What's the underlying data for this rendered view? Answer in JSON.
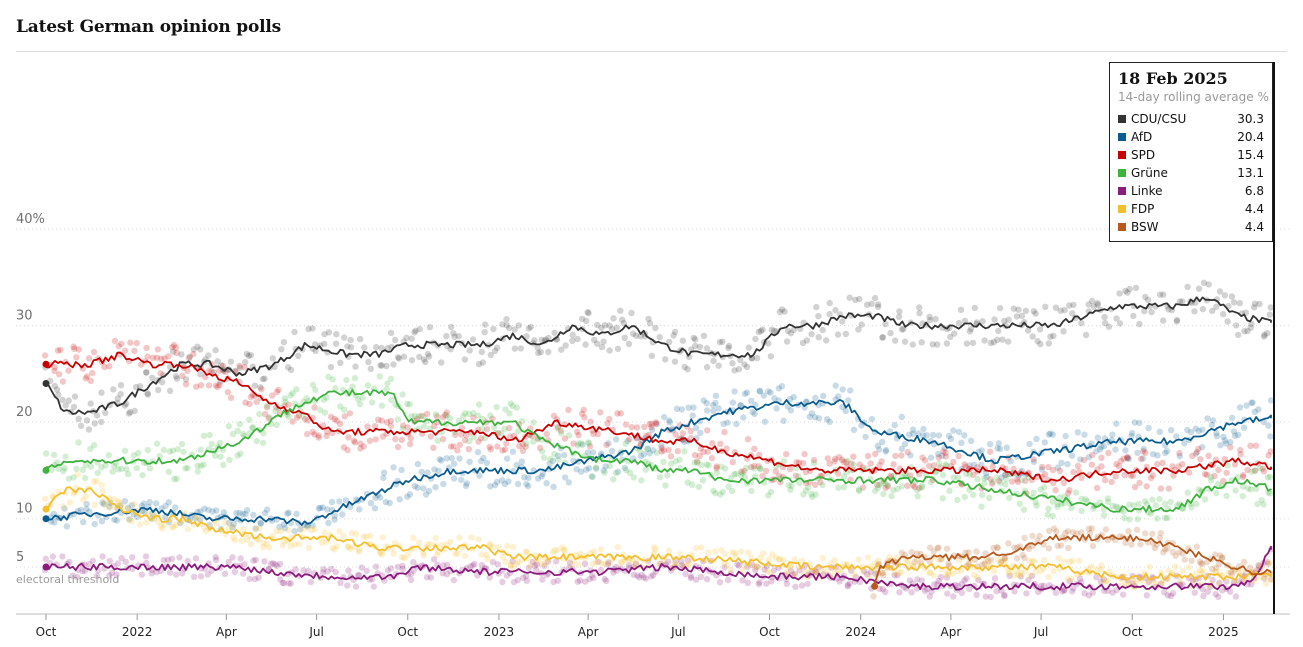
{
  "title": "Latest German opinion polls",
  "tooltip": {
    "date": "18 Feb 2025",
    "subtitle": "14-day rolling average %",
    "rows": [
      {
        "name": "CDU/CSU",
        "value": "30.3",
        "color": "#333333"
      },
      {
        "name": "AfD",
        "value": "20.4",
        "color": "#0a5b8f"
      },
      {
        "name": "SPD",
        "value": "15.4",
        "color": "#c70000"
      },
      {
        "name": "Grüne",
        "value": "13.1",
        "color": "#3db33d"
      },
      {
        "name": "Linke",
        "value": "6.8",
        "color": "#8b1a7d"
      },
      {
        "name": "FDP",
        "value": "4.4",
        "color": "#f5be2c"
      },
      {
        "name": "BSW",
        "value": "4.4",
        "color": "#b85a1d"
      }
    ]
  },
  "chart_data": {
    "type": "line",
    "title": "Latest German opinion polls",
    "y_ticks": [
      "40%",
      "30",
      "20",
      "10",
      "5"
    ],
    "y_tick_values": [
      40,
      30,
      20,
      10,
      5
    ],
    "threshold": {
      "value": 5,
      "label": "electoral threshold"
    },
    "ylim": [
      2,
      44
    ],
    "x_range": [
      "2021-10-01",
      "2025-02-20"
    ],
    "x_ticks": [
      {
        "label": "Oct",
        "date": "2021-10-01"
      },
      {
        "label": "2022",
        "date": "2022-01-01"
      },
      {
        "label": "Apr",
        "date": "2022-04-01"
      },
      {
        "label": "Jul",
        "date": "2022-07-01"
      },
      {
        "label": "Oct",
        "date": "2022-10-01"
      },
      {
        "label": "2023",
        "date": "2023-01-01"
      },
      {
        "label": "Apr",
        "date": "2023-04-01"
      },
      {
        "label": "Jul",
        "date": "2023-07-01"
      },
      {
        "label": "Oct",
        "date": "2023-10-01"
      },
      {
        "label": "2024",
        "date": "2024-01-01"
      },
      {
        "label": "Apr",
        "date": "2024-04-01"
      },
      {
        "label": "Jul",
        "date": "2024-07-01"
      },
      {
        "label": "Oct",
        "date": "2024-10-01"
      },
      {
        "label": "2025",
        "date": "2025-01-01"
      }
    ],
    "series": [
      {
        "name": "CDU/CSU",
        "color": "#333333",
        "points": [
          [
            "2021-10-01",
            24
          ],
          [
            "2021-10-20",
            21
          ],
          [
            "2021-11-15",
            21
          ],
          [
            "2021-12-15",
            22
          ],
          [
            "2022-01-15",
            24
          ],
          [
            "2022-02-15",
            26
          ],
          [
            "2022-03-15",
            26
          ],
          [
            "2022-04-15",
            25
          ],
          [
            "2022-05-20",
            26
          ],
          [
            "2022-06-20",
            28
          ],
          [
            "2022-08-01",
            27
          ],
          [
            "2022-09-01",
            27
          ],
          [
            "2022-10-01",
            28
          ],
          [
            "2022-11-15",
            28
          ],
          [
            "2022-12-15",
            28
          ],
          [
            "2023-01-15",
            29
          ],
          [
            "2023-02-15",
            28
          ],
          [
            "2023-03-15",
            30
          ],
          [
            "2023-04-15",
            29
          ],
          [
            "2023-05-15",
            30
          ],
          [
            "2023-06-15",
            28
          ],
          [
            "2023-07-15",
            27
          ],
          [
            "2023-08-15",
            27
          ],
          [
            "2023-09-15",
            27
          ],
          [
            "2023-10-15",
            30
          ],
          [
            "2023-11-15",
            30
          ],
          [
            "2023-12-15",
            31
          ],
          [
            "2024-01-15",
            31
          ],
          [
            "2024-02-15",
            30
          ],
          [
            "2024-03-15",
            30
          ],
          [
            "2024-04-15",
            30
          ],
          [
            "2024-05-15",
            30
          ],
          [
            "2024-06-15",
            30
          ],
          [
            "2024-07-15",
            30
          ],
          [
            "2024-08-15",
            31
          ],
          [
            "2024-09-15",
            32
          ],
          [
            "2024-10-15",
            32
          ],
          [
            "2024-11-15",
            32
          ],
          [
            "2024-12-15",
            33
          ],
          [
            "2025-01-15",
            31
          ],
          [
            "2025-02-18",
            30.3
          ]
        ]
      },
      {
        "name": "AfD",
        "color": "#0a5b8f",
        "points": [
          [
            "2021-10-01",
            10
          ],
          [
            "2021-11-15",
            10.5
          ],
          [
            "2022-01-15",
            11
          ],
          [
            "2022-03-15",
            10
          ],
          [
            "2022-05-15",
            10
          ],
          [
            "2022-06-20",
            9.5
          ],
          [
            "2022-08-15",
            12
          ],
          [
            "2022-10-01",
            14
          ],
          [
            "2022-11-15",
            15
          ],
          [
            "2023-01-01",
            15
          ],
          [
            "2023-02-15",
            15
          ],
          [
            "2023-04-01",
            16
          ],
          [
            "2023-05-15",
            17
          ],
          [
            "2023-06-15",
            19
          ],
          [
            "2023-07-15",
            20
          ],
          [
            "2023-08-15",
            21
          ],
          [
            "2023-10-15",
            22
          ],
          [
            "2023-12-15",
            22
          ],
          [
            "2024-01-15",
            19
          ],
          [
            "2024-03-15",
            18
          ],
          [
            "2024-05-15",
            16
          ],
          [
            "2024-07-15",
            17
          ],
          [
            "2024-09-15",
            18
          ],
          [
            "2024-11-15",
            18
          ],
          [
            "2024-12-15",
            19
          ],
          [
            "2025-01-15",
            20
          ],
          [
            "2025-02-18",
            20.4
          ]
        ]
      },
      {
        "name": "SPD",
        "color": "#c70000",
        "points": [
          [
            "2021-10-01",
            26
          ],
          [
            "2021-11-15",
            26
          ],
          [
            "2021-12-15",
            27
          ],
          [
            "2022-01-15",
            26
          ],
          [
            "2022-02-15",
            26
          ],
          [
            "2022-03-15",
            25
          ],
          [
            "2022-04-15",
            24
          ],
          [
            "2022-05-15",
            22
          ],
          [
            "2022-06-15",
            21
          ],
          [
            "2022-07-15",
            19
          ],
          [
            "2022-09-01",
            19
          ],
          [
            "2022-10-15",
            19
          ],
          [
            "2022-12-15",
            19
          ],
          [
            "2023-01-15",
            18
          ],
          [
            "2023-03-01",
            20
          ],
          [
            "2023-05-01",
            19
          ],
          [
            "2023-06-15",
            18
          ],
          [
            "2023-07-15",
            18
          ],
          [
            "2023-08-15",
            17
          ],
          [
            "2023-10-01",
            16
          ],
          [
            "2023-11-15",
            15
          ],
          [
            "2024-01-15",
            15
          ],
          [
            "2024-03-15",
            15
          ],
          [
            "2024-05-15",
            15
          ],
          [
            "2024-07-15",
            14
          ],
          [
            "2024-09-15",
            15
          ],
          [
            "2024-11-15",
            15
          ],
          [
            "2025-01-15",
            16
          ],
          [
            "2025-02-18",
            15.4
          ]
        ]
      },
      {
        "name": "Grüne",
        "color": "#3db33d",
        "points": [
          [
            "2021-10-01",
            15
          ],
          [
            "2021-10-20",
            16
          ],
          [
            "2021-12-15",
            16
          ],
          [
            "2022-01-15",
            16
          ],
          [
            "2022-02-15",
            16
          ],
          [
            "2022-03-15",
            17
          ],
          [
            "2022-04-15",
            18
          ],
          [
            "2022-05-15",
            20
          ],
          [
            "2022-06-15",
            22
          ],
          [
            "2022-07-15",
            23
          ],
          [
            "2022-08-15",
            23
          ],
          [
            "2022-09-15",
            23
          ],
          [
            "2022-10-01",
            20
          ],
          [
            "2022-11-15",
            20
          ],
          [
            "2022-12-15",
            20
          ],
          [
            "2023-01-15",
            20
          ],
          [
            "2023-02-15",
            18
          ],
          [
            "2023-03-15",
            17
          ],
          [
            "2023-04-15",
            16
          ],
          [
            "2023-05-15",
            16
          ],
          [
            "2023-06-15",
            15
          ],
          [
            "2023-07-15",
            15
          ],
          [
            "2023-08-15",
            14
          ],
          [
            "2023-09-15",
            14
          ],
          [
            "2023-10-15",
            14
          ],
          [
            "2023-11-15",
            14
          ],
          [
            "2024-01-15",
            14
          ],
          [
            "2024-03-15",
            14
          ],
          [
            "2024-05-15",
            13
          ],
          [
            "2024-07-15",
            12
          ],
          [
            "2024-09-15",
            11
          ],
          [
            "2024-10-15",
            11
          ],
          [
            "2024-11-15",
            11
          ],
          [
            "2024-12-15",
            13
          ],
          [
            "2025-01-15",
            14
          ],
          [
            "2025-02-18",
            13.1
          ]
        ]
      },
      {
        "name": "Linke",
        "color": "#8b1a7d",
        "points": [
          [
            "2021-10-01",
            5
          ],
          [
            "2021-11-15",
            5
          ],
          [
            "2022-01-15",
            5
          ],
          [
            "2022-03-15",
            5
          ],
          [
            "2022-04-15",
            5
          ],
          [
            "2022-05-15",
            4.5
          ],
          [
            "2022-07-15",
            4
          ],
          [
            "2022-09-15",
            4
          ],
          [
            "2022-10-15",
            5
          ],
          [
            "2022-12-15",
            4.5
          ],
          [
            "2023-02-15",
            4.5
          ],
          [
            "2023-04-15",
            4.5
          ],
          [
            "2023-06-15",
            5
          ],
          [
            "2023-08-15",
            4.5
          ],
          [
            "2023-10-01",
            4
          ],
          [
            "2023-12-15",
            4
          ],
          [
            "2024-02-15",
            3
          ],
          [
            "2024-04-15",
            3
          ],
          [
            "2024-06-15",
            3
          ],
          [
            "2024-08-15",
            3
          ],
          [
            "2024-10-15",
            3
          ],
          [
            "2024-12-15",
            3
          ],
          [
            "2025-01-15",
            3
          ],
          [
            "2025-02-01",
            4
          ],
          [
            "2025-02-18",
            6.8
          ]
        ]
      },
      {
        "name": "FDP",
        "color": "#f5be2c",
        "points": [
          [
            "2021-10-01",
            11
          ],
          [
            "2021-10-20",
            13
          ],
          [
            "2021-11-15",
            13
          ],
          [
            "2021-12-15",
            11
          ],
          [
            "2022-01-15",
            10
          ],
          [
            "2022-02-15",
            10
          ],
          [
            "2022-03-15",
            9
          ],
          [
            "2022-05-15",
            8
          ],
          [
            "2022-07-15",
            8
          ],
          [
            "2022-09-01",
            7
          ],
          [
            "2022-10-15",
            7
          ],
          [
            "2022-12-15",
            7
          ],
          [
            "2023-01-15",
            6
          ],
          [
            "2023-03-15",
            6
          ],
          [
            "2023-05-15",
            6
          ],
          [
            "2023-07-15",
            6
          ],
          [
            "2023-09-15",
            5.5
          ],
          [
            "2023-11-15",
            5
          ],
          [
            "2024-01-15",
            5
          ],
          [
            "2024-03-15",
            5
          ],
          [
            "2024-05-15",
            5
          ],
          [
            "2024-07-15",
            5
          ],
          [
            "2024-09-15",
            4
          ],
          [
            "2024-11-15",
            4
          ],
          [
            "2025-01-15",
            4
          ],
          [
            "2025-02-18",
            4.4
          ]
        ]
      },
      {
        "name": "BSW",
        "color": "#b85a1d",
        "points": [
          [
            "2024-01-15",
            3
          ],
          [
            "2024-01-20",
            5
          ],
          [
            "2024-02-15",
            6
          ],
          [
            "2024-03-15",
            6
          ],
          [
            "2024-05-01",
            6
          ],
          [
            "2024-06-15",
            7
          ],
          [
            "2024-07-15",
            8
          ],
          [
            "2024-08-15",
            8
          ],
          [
            "2024-09-15",
            8
          ],
          [
            "2024-10-15",
            8
          ],
          [
            "2024-11-15",
            7
          ],
          [
            "2024-12-15",
            6
          ],
          [
            "2025-01-15",
            5
          ],
          [
            "2025-02-01",
            4.5
          ],
          [
            "2025-02-18",
            4.4
          ]
        ]
      }
    ]
  }
}
